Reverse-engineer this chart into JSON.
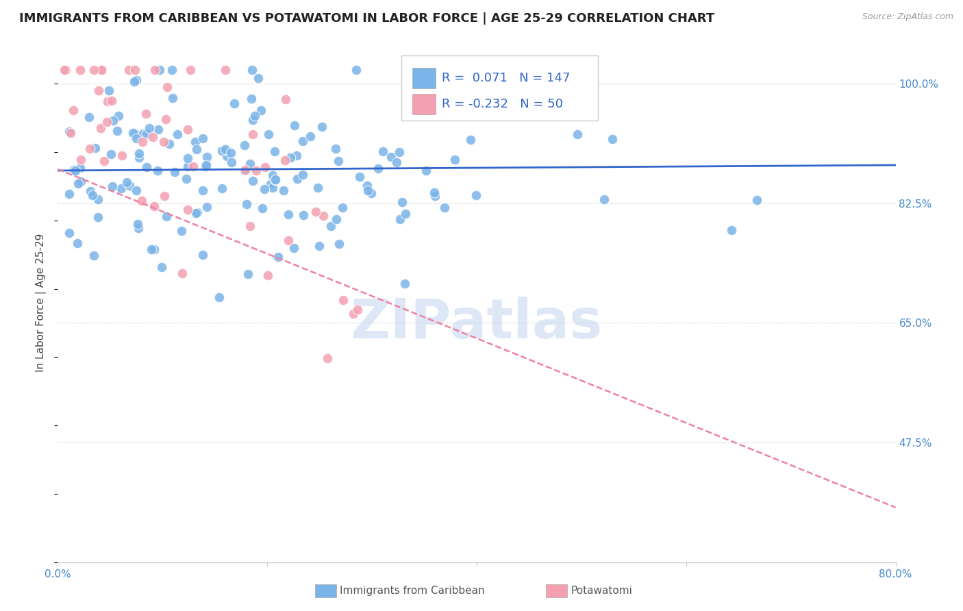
{
  "title": "IMMIGRANTS FROM CARIBBEAN VS POTAWATOMI IN LABOR FORCE | AGE 25-29 CORRELATION CHART",
  "source": "Source: ZipAtlas.com",
  "ylabel": "In Labor Force | Age 25-29",
  "yticks": [
    0.475,
    0.65,
    0.825,
    1.0
  ],
  "ytick_labels": [
    "47.5%",
    "65.0%",
    "82.5%",
    "100.0%"
  ],
  "xmin": 0.0,
  "xmax": 0.8,
  "ymin": 0.3,
  "ymax": 1.06,
  "blue_R": 0.071,
  "blue_N": 147,
  "pink_R": -0.232,
  "pink_N": 50,
  "blue_color": "#7ab4e8",
  "pink_color": "#f4a0b0",
  "blue_line_color": "#3366cc",
  "pink_line_color": "#f080a0",
  "legend_label_blue": "Immigrants from Caribbean",
  "legend_label_pink": "Potawatomi",
  "watermark": "ZIPatlas",
  "watermark_color": "#c8d8f0",
  "title_fontsize": 13,
  "tick_label_color": "#4488cc",
  "background_color": "#ffffff",
  "grid_color": "#dddddd",
  "blue_trend_x0": 0.0,
  "blue_trend_x1": 0.8,
  "blue_trend_y0": 0.873,
  "blue_trend_y1": 0.881,
  "pink_trend_x0": 0.0,
  "pink_trend_x1": 0.8,
  "pink_trend_y0": 0.875,
  "pink_trend_y1": 0.38
}
